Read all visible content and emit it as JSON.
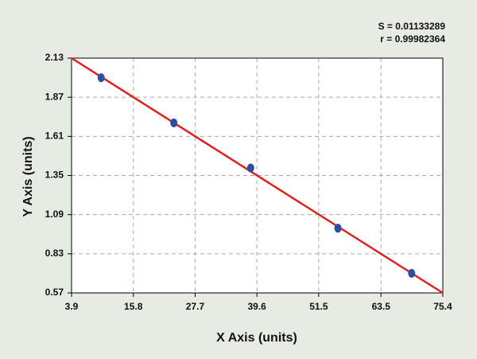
{
  "chart_data": {
    "type": "scatter",
    "xlabel": "X Axis (units)",
    "ylabel": "Y Axis (units)",
    "annotations": [
      "S = 0.01133289",
      "r = 0.99982364"
    ],
    "x": [
      9.6,
      23.6,
      38.4,
      55.2,
      69.4
    ],
    "values": [
      2.0,
      1.7,
      1.4,
      1.0,
      0.7
    ],
    "color": "#2d4ea3",
    "fit": {
      "x": [
        3.9,
        75.4
      ],
      "values": [
        2.13,
        0.57
      ],
      "color": "#e0201c"
    },
    "xlim": [
      3.9,
      75.4
    ],
    "xticks": [
      3.9,
      15.8,
      27.7,
      39.6,
      51.5,
      63.5,
      75.4
    ],
    "ylim": [
      0.57,
      2.13
    ],
    "yticks": [
      0.57,
      0.83,
      1.09,
      1.35,
      1.61,
      1.87,
      2.13
    ],
    "grid": true
  }
}
